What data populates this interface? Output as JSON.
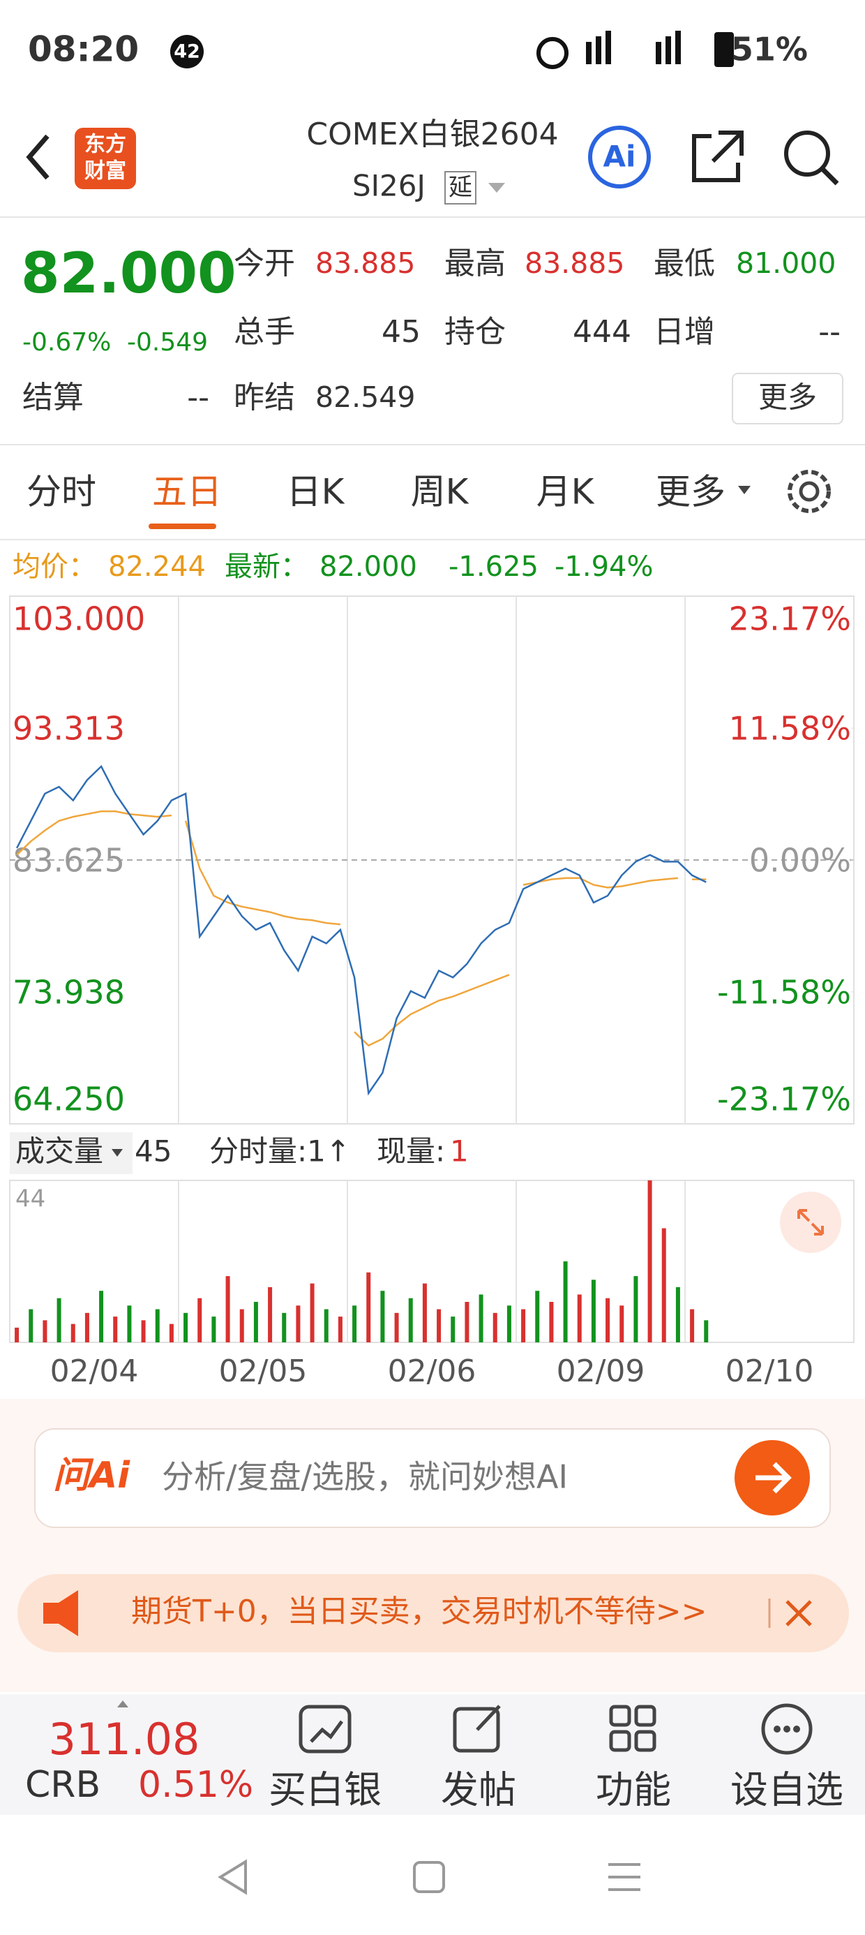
{
  "status_bar": {
    "time": "08:20",
    "badge": "42",
    "battery": "51%"
  },
  "header": {
    "logo": [
      "东方",
      "财富"
    ],
    "title": "COMEX白银2604",
    "code": "SI26J",
    "tag": "延",
    "ai_icon": "Ai"
  },
  "quote": {
    "price": "82.000",
    "change_pct": "-0.67%",
    "change": "-0.549",
    "open": {
      "label": "今开",
      "value": "83.885"
    },
    "high": {
      "label": "最高",
      "value": "83.885"
    },
    "low": {
      "label": "最低",
      "value": "81.000"
    },
    "volume": {
      "label": "总手",
      "value": "45"
    },
    "open_interest": {
      "label": "持仓",
      "value": "444"
    },
    "daily_change": {
      "label": "日增",
      "value": "--"
    },
    "settlement": {
      "label": "结算",
      "value": "--"
    },
    "prev_settlement": {
      "label": "昨结",
      "value": "82.549"
    },
    "more": "更多"
  },
  "tabs": [
    "分时",
    "五日",
    "日K",
    "周K",
    "月K",
    "更多"
  ],
  "chart": {
    "avg_label": "均价：",
    "avg": "82.244",
    "latest_label": "最新：",
    "latest": "82.000",
    "change": "-1.625",
    "change_pct": "-1.94%",
    "ylim": [
      64.25,
      103
    ],
    "yticks": [
      {
        "value": 103,
        "label": "103.000"
      },
      93.313,
      83.625,
      73.938,
      {
        "value": 64.25,
        "label": "64.250"
      }
    ],
    "y2lim": [
      -23.17,
      23.17
    ],
    "y2ticks": [
      {
        "value": 23.17,
        "label": "23.17%"
      },
      {
        "value": 11.58,
        "label": "11.58%"
      },
      {
        "value": 0,
        "label": "0.00%"
      },
      {
        "value": -11.58,
        "label": "-11.58%"
      },
      {
        "value": -23.17,
        "label": "-23.17%"
      }
    ],
    "dates": [
      "02/04",
      "02/05",
      "02/06",
      "02/09",
      "02/10"
    ],
    "price": {
      "color": "#2e6db4",
      "values": [
        84.5,
        86.5,
        88.5,
        89.0,
        88.0,
        89.5,
        90.5,
        88.5,
        87.0,
        85.5,
        86.5,
        88.0,
        88.5,
        78.0,
        79.5,
        81.0,
        79.5,
        78.5,
        79.0,
        77.0,
        75.5,
        78.0,
        77.5,
        78.5,
        75.0,
        66.5,
        68.0,
        72.0,
        74.0,
        73.5,
        75.5,
        75.0,
        76.0,
        77.5,
        78.5,
        79.0,
        81.5,
        82.0,
        82.5,
        83.0,
        82.5,
        80.5,
        81.0,
        82.5,
        83.5,
        84.0,
        83.5,
        83.5,
        82.5,
        82.0
      ]
    },
    "average": {
      "color": "#f0a63c",
      "days": [
        [
          84.0,
          85.0,
          85.8,
          86.5,
          86.8,
          87.0,
          87.2,
          87.2,
          87.0,
          86.9,
          86.8,
          86.9
        ],
        [
          86.5,
          83.0,
          81.0,
          80.5,
          80.2,
          80.0,
          79.8,
          79.5,
          79.3,
          79.2,
          79.0,
          78.9
        ],
        [
          71.0,
          70.0,
          70.5,
          71.5,
          72.3,
          72.8,
          73.3,
          73.6,
          74.0,
          74.4,
          74.8,
          75.2
        ],
        [
          81.8,
          82.0,
          82.2,
          82.3,
          82.3,
          81.8,
          81.6,
          81.7,
          81.9,
          82.1,
          82.2,
          82.3
        ],
        [
          82.2,
          82.2
        ]
      ]
    },
    "volume": {
      "label": "成交量",
      "total": "45",
      "tick_label": "分时量:1↑",
      "now_label": "现量:",
      "now": "1",
      "ylim": [
        0,
        44
      ],
      "yticks": [
        44
      ],
      "values": [
        4,
        9,
        6,
        12,
        5,
        8,
        14,
        7,
        10,
        6,
        9,
        5,
        8,
        12,
        7,
        18,
        9,
        11,
        15,
        8,
        10,
        16,
        9,
        7,
        10,
        19,
        14,
        8,
        12,
        16,
        9,
        7,
        11,
        13,
        8,
        10,
        9,
        14,
        11,
        22,
        13,
        17,
        12,
        10,
        18,
        44,
        31,
        15,
        9,
        6
      ],
      "colors": [
        "#d8312f",
        "#12921e",
        "#d8312f",
        "#12921e",
        "#d8312f",
        "#d8312f",
        "#12921e",
        "#d8312f",
        "#12921e",
        "#d8312f",
        "#12921e",
        "#d8312f",
        "#12921e",
        "#d8312f",
        "#12921e",
        "#d8312f",
        "#d8312f",
        "#12921e",
        "#d8312f",
        "#12921e",
        "#d8312f",
        "#d8312f",
        "#12921e",
        "#d8312f",
        "#12921e",
        "#d8312f",
        "#12921e",
        "#d8312f",
        "#12921e",
        "#d8312f",
        "#d8312f",
        "#12921e",
        "#d8312f",
        "#12921e",
        "#d8312f",
        "#12921e",
        "#d8312f",
        "#12921e",
        "#d8312f",
        "#12921e",
        "#d8312f",
        "#12921e",
        "#d8312f",
        "#d8312f",
        "#12921e",
        "#d8312f",
        "#d8312f",
        "#12921e",
        "#d8312f",
        "#12921e"
      ]
    }
  },
  "ask_box": {
    "logo": "问Ai",
    "placeholder": "分析/复盘/选股，就问妙想AI"
  },
  "banner": {
    "text": "期货T+0，当日买卖，交易时机不等待>>"
  },
  "bottom_bar": {
    "index_value": "311.08",
    "index_name": "CRB",
    "index_change": "0.51%",
    "items": [
      "买白银",
      "发帖",
      "功能",
      "设自选"
    ]
  }
}
